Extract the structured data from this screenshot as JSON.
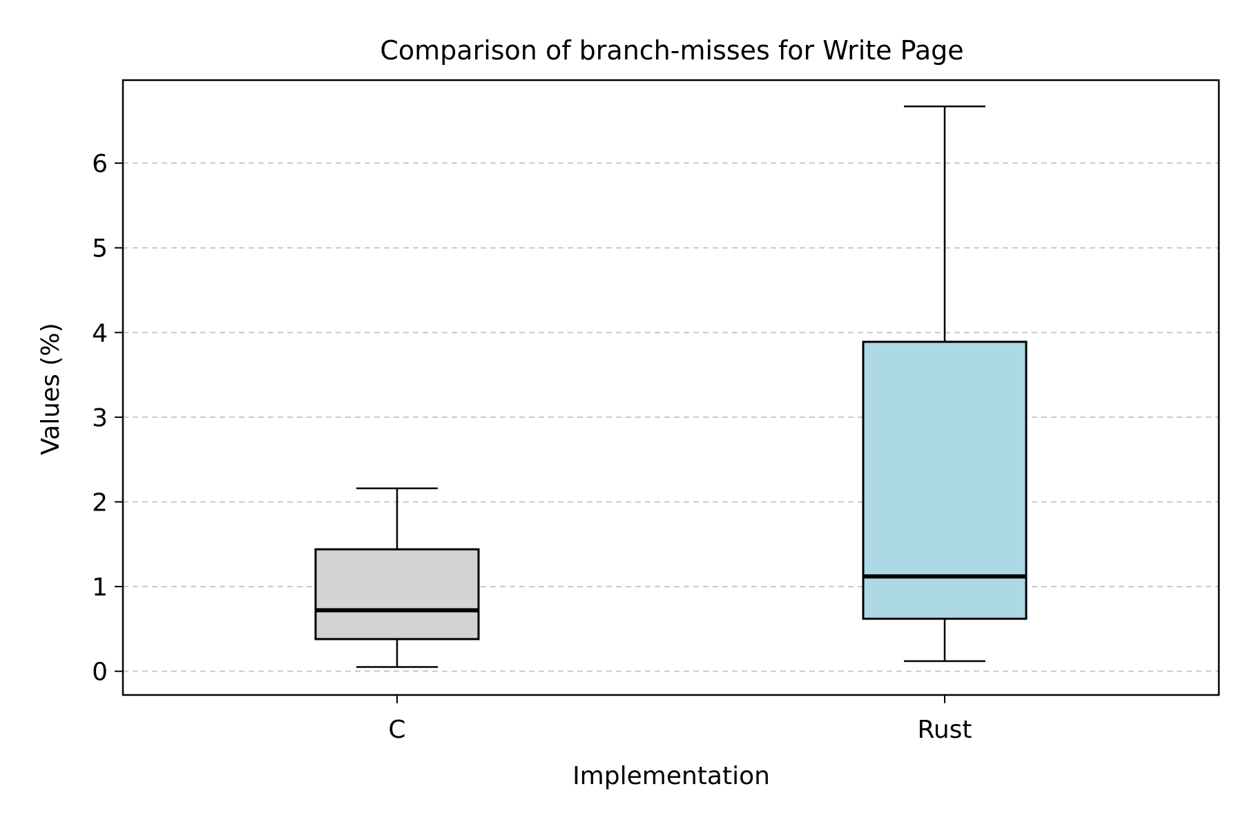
{
  "chart_data": {
    "type": "box",
    "title": "Comparison of branch-misses for Write Page",
    "xlabel": "Implementation",
    "ylabel": "Values (%)",
    "ylim": [
      -0.28,
      6.98
    ],
    "yticks": [
      0,
      1,
      2,
      3,
      4,
      5,
      6
    ],
    "grid": "y-dashed",
    "categories": [
      "C",
      "Rust"
    ],
    "boxes": [
      {
        "category": "C",
        "whisker_low": 0.05,
        "q1": 0.38,
        "median": 0.72,
        "q3": 1.44,
        "whisker_high": 2.16,
        "fill": "#d3d3d3"
      },
      {
        "category": "Rust",
        "whisker_low": 0.12,
        "q1": 0.62,
        "median": 1.12,
        "q3": 3.89,
        "whisker_high": 6.67,
        "fill": "#add8e6"
      }
    ]
  }
}
